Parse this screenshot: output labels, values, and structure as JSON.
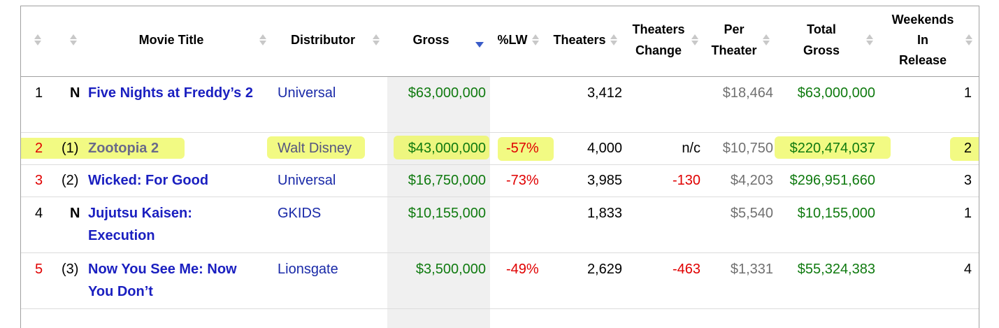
{
  "columns": {
    "movie_title": "Movie Title",
    "distributor": "Distributor",
    "gross": "Gross",
    "pct_lw": "%LW",
    "theaters": "Theaters",
    "theaters_change_1": "Theaters",
    "theaters_change_2": "Change",
    "per_theater_1": "Per",
    "per_theater_2": "Theater",
    "total_gross_1": "Total",
    "total_gross_2": "Gross",
    "weekends_1": "Weekends",
    "weekends_2": "In",
    "weekends_3": "Release"
  },
  "sort": {
    "column": "Gross",
    "direction": "descending"
  },
  "rows": [
    {
      "rank": "1",
      "last_week": "N",
      "title": "Five Nights at Freddy’s 2",
      "distributor": "Universal",
      "gross": "$63,000,000",
      "pct_lw": "",
      "theaters": "3,412",
      "theaters_change": "",
      "per_theater": "$18,464",
      "total_gross": "$63,000,000",
      "weekends": "1"
    },
    {
      "rank": "2",
      "last_week": "(1)",
      "title": "Zootopia 2",
      "distributor": "Walt Disney",
      "gross": "$43,000,000",
      "pct_lw": "-57%",
      "theaters": "4,000",
      "theaters_change": "n/c",
      "per_theater": "$10,750",
      "total_gross": "$220,474,037",
      "weekends": "2",
      "highlighted": true
    },
    {
      "rank": "3",
      "last_week": "(2)",
      "title": "Wicked: For Good",
      "distributor": "Universal",
      "gross": "$16,750,000",
      "pct_lw": "-73%",
      "theaters": "3,985",
      "theaters_change": "-130",
      "per_theater": "$4,203",
      "total_gross": "$296,951,660",
      "weekends": "3"
    },
    {
      "rank": "4",
      "last_week": "N",
      "title": "Jujutsu Kaisen: Execution",
      "distributor": "GKIDS",
      "gross": "$10,155,000",
      "pct_lw": "",
      "theaters": "1,833",
      "theaters_change": "",
      "per_theater": "$5,540",
      "total_gross": "$10,155,000",
      "weekends": "1"
    },
    {
      "rank": "5",
      "last_week": "(3)",
      "title": "Now You See Me: Now You Don’t",
      "distributor": "Lionsgate",
      "gross": "$3,500,000",
      "pct_lw": "-49%",
      "theaters": "2,629",
      "theaters_change": "-463",
      "per_theater": "$1,331",
      "total_gross": "$55,324,383",
      "weekends": "4"
    }
  ],
  "colors": {
    "title_link": "#1a1fc0",
    "gross_green": "#0f7a0f",
    "decline_red": "#e00000",
    "highlight": "#eef85a",
    "sort_active": "#3a5cc8"
  }
}
